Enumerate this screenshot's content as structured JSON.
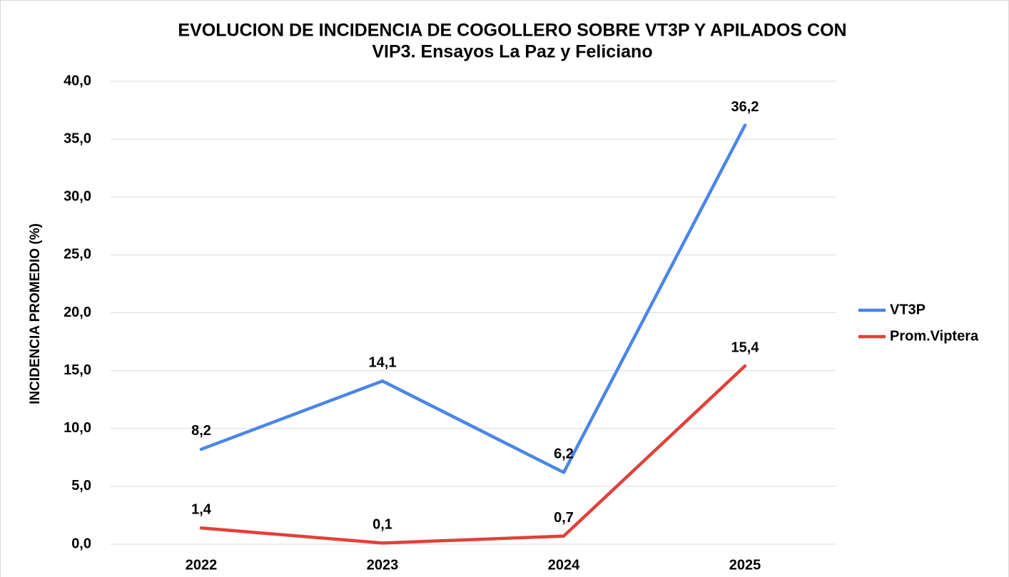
{
  "chart_data": {
    "type": "line",
    "title": [
      "EVOLUCION DE INCIDENCIA DE COGOLLERO SOBRE VT3P Y APILADOS CON",
      "VIP3. Ensayos La Paz y Feliciano"
    ],
    "y_label": "INCIDENCIA PROMEDIO (%)",
    "categories": [
      "2022",
      "2023",
      "2024",
      "2025"
    ],
    "series": [
      {
        "name": "VT3P",
        "color": "#4a86e8",
        "values": [
          8.2,
          14.1,
          6.2,
          36.2
        ],
        "value_labels": [
          "8,2",
          "14,1",
          "6,2",
          "36,2"
        ]
      },
      {
        "name": "Prom.Viptera",
        "color": "#e0413a",
        "values": [
          1.4,
          0.1,
          0.7,
          15.4
        ],
        "value_labels": [
          "1,4",
          "0,1",
          "0,7",
          "15,4"
        ]
      }
    ],
    "ylim": [
      0,
      40
    ],
    "yticks": [
      {
        "value": 0,
        "label": "0,0"
      },
      {
        "value": 5,
        "label": "5,0"
      },
      {
        "value": 10,
        "label": "10,0"
      },
      {
        "value": 15,
        "label": "15,0"
      },
      {
        "value": 20,
        "label": "20,0"
      },
      {
        "value": 25,
        "label": "25,0"
      },
      {
        "value": 30,
        "label": "30,0"
      },
      {
        "value": 35,
        "label": "35,0"
      },
      {
        "value": 40,
        "label": "40,0"
      }
    ],
    "grid": true,
    "legend": "right"
  }
}
